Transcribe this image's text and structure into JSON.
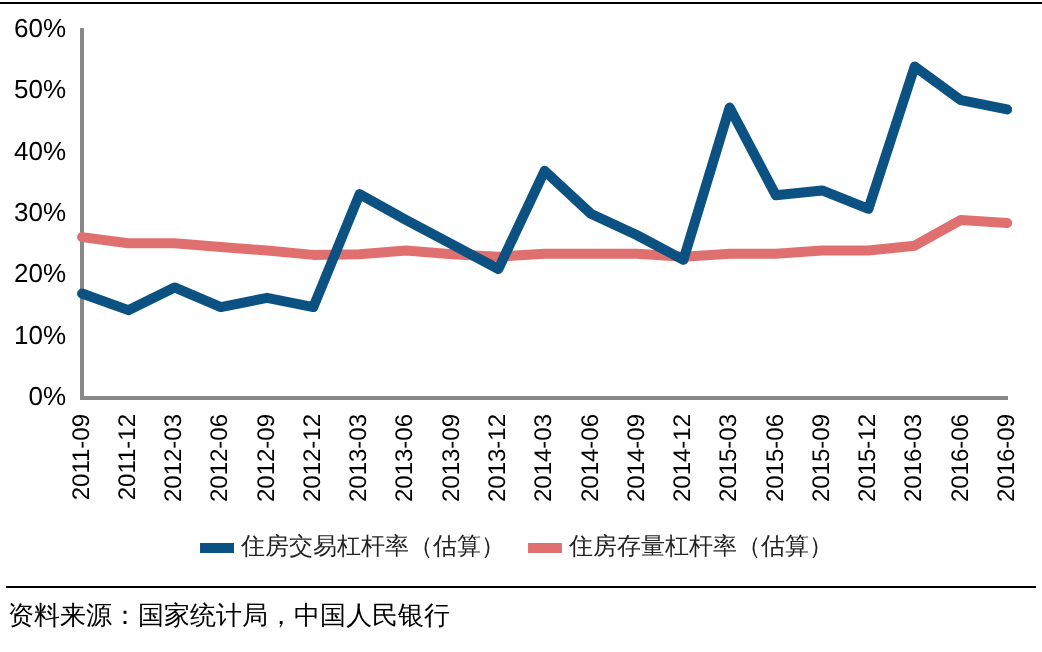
{
  "chart_data": {
    "type": "line",
    "categories": [
      "2011-09",
      "2011-12",
      "2012-03",
      "2012-06",
      "2012-09",
      "2012-12",
      "2013-03",
      "2013-06",
      "2013-09",
      "2013-12",
      "2014-03",
      "2014-06",
      "2014-09",
      "2014-12",
      "2015-03",
      "2015-06",
      "2015-09",
      "2015-12",
      "2016-03",
      "2016-06",
      "2016-09"
    ],
    "series": [
      {
        "name": "住房交易杠杆率（估算）",
        "color": "#0b5282",
        "values": [
          17,
          14.3,
          18,
          14.8,
          16.3,
          14.8,
          33.2,
          29,
          25,
          21,
          37,
          30,
          26.5,
          22.5,
          47.3,
          33,
          33.8,
          30.8,
          54,
          48.5,
          47
        ]
      },
      {
        "name": "住房存量杠杆率（估算）",
        "color": "#e07070",
        "values": [
          26.2,
          25.2,
          25.2,
          24.6,
          24,
          23.3,
          23.4,
          24,
          23.4,
          23,
          23.5,
          23.5,
          23.5,
          23,
          23.5,
          23.5,
          24,
          24,
          24.8,
          29,
          28.5
        ]
      }
    ],
    "ylim": [
      0,
      60
    ],
    "yticks": [
      {
        "value": 0,
        "label": "0%"
      },
      {
        "value": 10,
        "label": "10%"
      },
      {
        "value": 20,
        "label": "20%"
      },
      {
        "value": 30,
        "label": "30%"
      },
      {
        "value": 40,
        "label": "40%"
      },
      {
        "value": 50,
        "label": "50%"
      },
      {
        "value": 60,
        "label": "60%"
      }
    ],
    "grid": false,
    "legend": "bottom",
    "marker": "none",
    "line_style": "solid",
    "annotations": [
      "资料来源：国家统计局，中国人民银行"
    ]
  }
}
